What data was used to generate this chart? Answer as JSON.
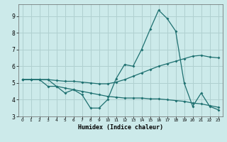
{
  "xlabel": "Humidex (Indice chaleur)",
  "bg_color": "#cceaea",
  "grid_color": "#b0d0d0",
  "line_color": "#1e7070",
  "xlim": [
    -0.5,
    23.5
  ],
  "ylim": [
    3.0,
    9.7
  ],
  "xticks": [
    0,
    1,
    2,
    3,
    4,
    5,
    6,
    7,
    8,
    9,
    10,
    11,
    12,
    13,
    14,
    15,
    16,
    17,
    18,
    19,
    20,
    21,
    22,
    23
  ],
  "yticks": [
    3,
    4,
    5,
    6,
    7,
    8,
    9
  ],
  "series1_x": [
    0,
    1,
    2,
    3,
    4,
    5,
    6,
    7,
    8,
    9,
    10,
    11,
    12,
    13,
    14,
    15,
    16,
    17,
    18,
    19,
    20,
    21,
    22,
    23
  ],
  "series1_y": [
    5.2,
    5.2,
    5.2,
    4.8,
    4.8,
    4.4,
    4.6,
    4.3,
    3.5,
    3.5,
    4.0,
    5.25,
    6.1,
    6.0,
    7.0,
    8.2,
    9.35,
    8.85,
    8.1,
    5.0,
    3.6,
    4.4,
    3.6,
    3.4
  ],
  "series2_x": [
    0,
    1,
    2,
    3,
    4,
    5,
    6,
    7,
    8,
    9,
    10,
    11,
    12,
    13,
    14,
    15,
    16,
    17,
    18,
    19,
    20,
    21,
    22,
    23
  ],
  "series2_y": [
    5.2,
    5.2,
    5.2,
    5.2,
    5.15,
    5.1,
    5.1,
    5.05,
    5.0,
    4.95,
    4.95,
    5.05,
    5.2,
    5.4,
    5.6,
    5.8,
    6.0,
    6.15,
    6.3,
    6.45,
    6.6,
    6.65,
    6.55,
    6.5
  ],
  "series3_x": [
    0,
    1,
    2,
    3,
    4,
    5,
    6,
    7,
    8,
    9,
    10,
    11,
    12,
    13,
    14,
    15,
    16,
    17,
    18,
    19,
    20,
    21,
    22,
    23
  ],
  "series3_y": [
    5.2,
    5.2,
    5.2,
    5.2,
    4.8,
    4.7,
    4.6,
    4.5,
    4.4,
    4.3,
    4.2,
    4.15,
    4.1,
    4.1,
    4.1,
    4.05,
    4.05,
    4.0,
    3.95,
    3.9,
    3.8,
    3.75,
    3.65,
    3.55
  ]
}
